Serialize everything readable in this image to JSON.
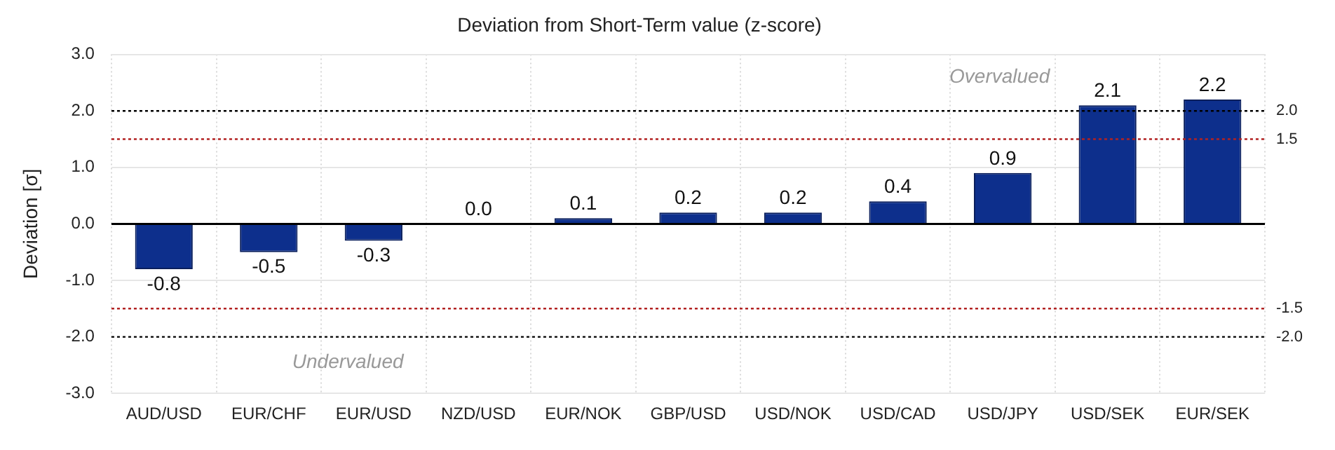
{
  "chart_data": {
    "type": "bar",
    "title": "Deviation from Short-Term value (z-score)",
    "ylabel": "Deviation [σ]",
    "categories": [
      "AUD/USD",
      "EUR/CHF",
      "EUR/USD",
      "NZD/USD",
      "EUR/NOK",
      "GBP/USD",
      "USD/NOK",
      "USD/CAD",
      "USD/JPY",
      "USD/SEK",
      "EUR/SEK"
    ],
    "values": [
      -0.8,
      -0.5,
      -0.3,
      0.0,
      0.1,
      0.2,
      0.2,
      0.4,
      0.9,
      2.1,
      2.2
    ],
    "color": "#0d2f8c",
    "ylim": [
      -3,
      3
    ],
    "yticks": [
      {
        "value": -3,
        "label": "-3.0"
      },
      {
        "value": -2,
        "label": "-2.0"
      },
      {
        "value": -1,
        "label": "-1.0"
      },
      {
        "value": 0,
        "label": "0.0"
      },
      {
        "value": 1,
        "label": "1.0"
      },
      {
        "value": 2,
        "label": "2.0"
      },
      {
        "value": 3,
        "label": "3.0"
      }
    ],
    "ref_lines": [
      {
        "axis": "y",
        "value": 2,
        "label": "2.0",
        "color": "#000000",
        "line_style": "dotted"
      },
      {
        "axis": "y",
        "value": 1.5,
        "label": "1.5",
        "color": "#b22222",
        "line_style": "dotted"
      },
      {
        "axis": "y",
        "value": -1.5,
        "label": "-1.5",
        "color": "#b22222",
        "line_style": "dotted"
      },
      {
        "axis": "y",
        "value": -2,
        "label": "-2.0",
        "color": "#000000",
        "line_style": "dotted"
      }
    ],
    "annotations": [
      "Overvalued",
      "Undervalued"
    ],
    "value_labels": [
      "-0.8",
      "-0.5",
      "-0.3",
      "0.0",
      "0.1",
      "0.2",
      "0.2",
      "0.4",
      "0.9",
      "2.1",
      "2.2"
    ],
    "grid": true,
    "legend": false
  }
}
